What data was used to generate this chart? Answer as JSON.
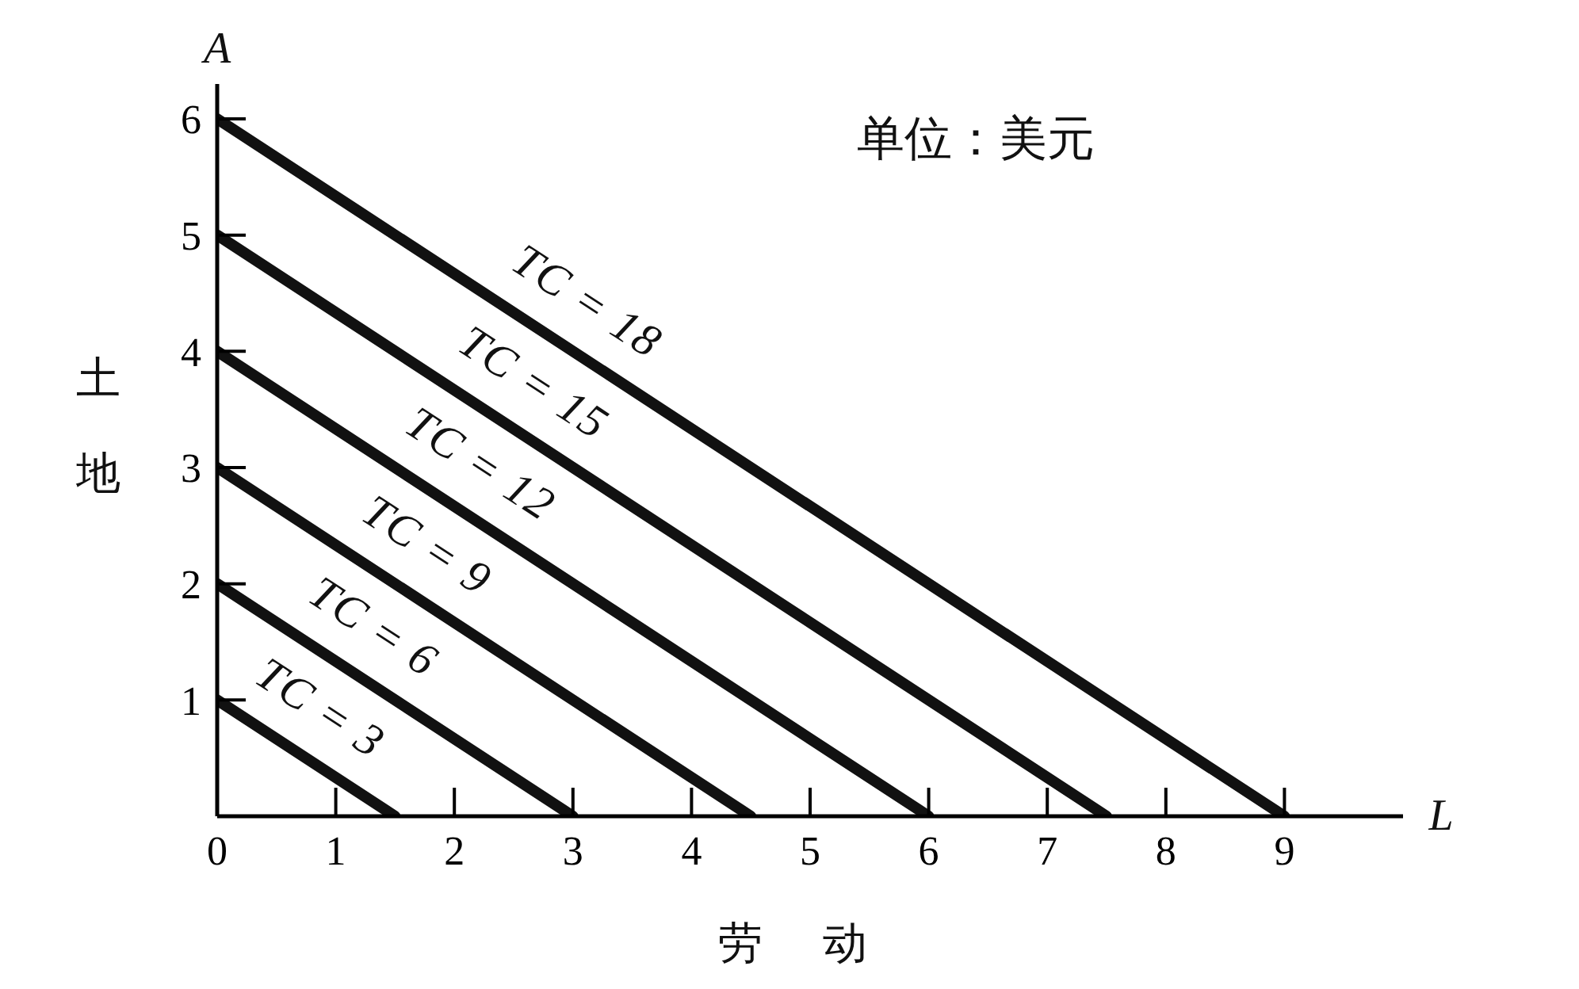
{
  "chart_data": {
    "type": "line",
    "xlabel": "劳动",
    "ylabel": "土地",
    "annotations": [
      "A",
      "L",
      "单位：美元"
    ],
    "xlim": [
      0,
      10
    ],
    "ylim": [
      0,
      6.3
    ],
    "xticks": [
      0,
      1,
      2,
      3,
      4,
      5,
      6,
      7,
      8,
      9
    ],
    "yticks": [
      1,
      2,
      3,
      4,
      5,
      6
    ],
    "marker": "none",
    "line_style": "solid",
    "series": [
      {
        "name": "TC = 3",
        "color": "#111111",
        "x": [
          0,
          1.5
        ],
        "values": [
          1,
          0
        ]
      },
      {
        "name": "TC = 6",
        "color": "#111111",
        "x": [
          0,
          3
        ],
        "values": [
          2,
          0
        ]
      },
      {
        "name": "TC = 9",
        "color": "#111111",
        "x": [
          0,
          4.5
        ],
        "values": [
          3,
          0
        ]
      },
      {
        "name": "TC = 12",
        "color": "#111111",
        "x": [
          0,
          6
        ],
        "values": [
          4,
          0
        ]
      },
      {
        "name": "TC = 15",
        "color": "#111111",
        "x": [
          0,
          7.5
        ],
        "values": [
          5,
          0
        ]
      },
      {
        "name": "TC = 18",
        "color": "#111111",
        "x": [
          0,
          9
        ],
        "values": [
          6,
          0
        ]
      }
    ]
  }
}
